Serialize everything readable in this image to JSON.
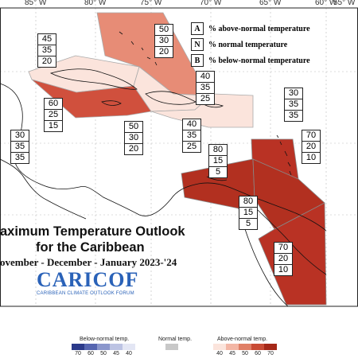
{
  "longitudes": [
    "85° W",
    "80° W",
    "75° W",
    "70° W",
    "65° W",
    "60° W",
    "55° W"
  ],
  "legend_key": [
    {
      "letter": "A",
      "text": "% above-normal temperature"
    },
    {
      "letter": "N",
      "text": "% normal temperature"
    },
    {
      "letter": "B",
      "text": "% below-normal temperature"
    }
  ],
  "regions": [
    {
      "name": "bahamas-north",
      "fill": "#e78c76",
      "probs": [
        "50",
        "30",
        "20"
      ]
    },
    {
      "name": "cuba-west",
      "fill": "#fbe4dc",
      "probs": [
        "45",
        "35",
        "20"
      ]
    },
    {
      "name": "cuba-central",
      "fill": "#d0503d",
      "probs": [
        "60",
        "25",
        "15"
      ]
    },
    {
      "name": "hispaniola-north",
      "fill": "#fbe4dc",
      "probs": [
        "40",
        "35",
        "25"
      ]
    },
    {
      "name": "hispaniola-south",
      "fill": "#fbe4dc",
      "probs": [
        "40",
        "35",
        "25"
      ]
    },
    {
      "name": "jamaica",
      "fill": "#f7c9bc",
      "probs": [
        "50",
        "30",
        "20"
      ]
    },
    {
      "name": "belize",
      "fill": "#ffffff",
      "probs": [
        "30",
        "35",
        "35"
      ]
    },
    {
      "name": "bermuda-east",
      "fill": "#ffffff",
      "probs": [
        "30",
        "35",
        "35"
      ]
    },
    {
      "name": "lesser-antilles",
      "fill": "#b93224",
      "probs": [
        "70",
        "20",
        "10"
      ]
    },
    {
      "name": "abc-islands",
      "fill": "#b23020",
      "probs": [
        "80",
        "15",
        "5"
      ]
    },
    {
      "name": "trinidad",
      "fill": "#b23020",
      "probs": [
        "80",
        "15",
        "5"
      ]
    },
    {
      "name": "guianas",
      "fill": "#b93224",
      "probs": [
        "70",
        "20",
        "10"
      ]
    }
  ],
  "title": {
    "line1": "aximum Temperature Outlook",
    "line2": "for the Caribbean",
    "period": "ovember - December - January 2023-'24"
  },
  "logo": {
    "word": "CARICOF",
    "subtitle": "CARIBBEAN CLIMATE OUTLOOK FORUM"
  },
  "color_scale": {
    "below": {
      "label": "Below-normal temp.",
      "ticks": [
        "70",
        "60",
        "50",
        "45",
        "40"
      ],
      "colors": [
        "#2b3a8a",
        "#5565b0",
        "#8a96cc",
        "#bcc3e3",
        "#e3e6f4"
      ]
    },
    "normal": {
      "label": "Normal temp.",
      "colors": [
        "#c8c8c8"
      ]
    },
    "above": {
      "label": "Above-normal temp.",
      "ticks": [
        "40",
        "45",
        "50",
        "60",
        "70"
      ],
      "colors": [
        "#fbe4dc",
        "#f3b6a5",
        "#e07f66",
        "#c94b35",
        "#a52818"
      ]
    }
  }
}
